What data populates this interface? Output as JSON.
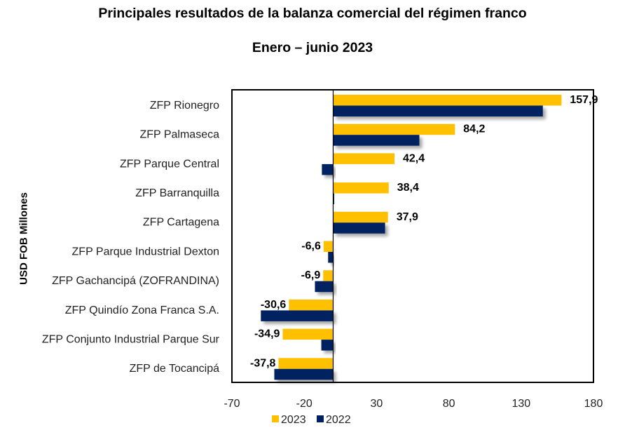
{
  "chart_data": {
    "type": "bar",
    "orientation": "horizontal",
    "title": "Principales resultados de la balanza comercial del régimen franco",
    "subtitle": "Enero – junio 2023",
    "xlabel": "",
    "ylabel": "USD FOB Millones",
    "xlim": [
      -70,
      180
    ],
    "xticks": [
      -70,
      -20,
      30,
      80,
      130,
      180
    ],
    "xtick_labels": [
      "-70",
      "-20",
      "30",
      "80",
      "130",
      "180"
    ],
    "grid": false,
    "legend_position": "bottom",
    "categories": [
      "ZFP Rionegro",
      "ZFP Palmaseca",
      "ZFP Parque Central",
      "ZFP Barranquilla",
      "ZFP Cartagena",
      "ZFP Parque Industrial Dexton",
      "ZFP Gachancipá (ZOFRANDINA)",
      "ZFP Quindío Zona Franca S.A.",
      "ZFP Conjunto Industrial Parque Sur",
      "ZFP de Tocancipá"
    ],
    "series": [
      {
        "name": "2023",
        "color": "#FFC000",
        "values": [
          157.9,
          84.2,
          42.4,
          38.4,
          37.9,
          -6.6,
          -6.9,
          -30.6,
          -34.9,
          -37.8
        ],
        "labels": [
          "157,9",
          "84,2",
          "42,4",
          "38,4",
          "37,9",
          "-6,6",
          "-6,9",
          "-30,6",
          "-34,9",
          "-37,8"
        ]
      },
      {
        "name": "2022",
        "color": "#002060",
        "values": [
          145.0,
          59.6,
          -7.8,
          0.5,
          35.9,
          -3.5,
          -12.6,
          -50.0,
          -8.2,
          -40.7
        ]
      }
    ]
  }
}
